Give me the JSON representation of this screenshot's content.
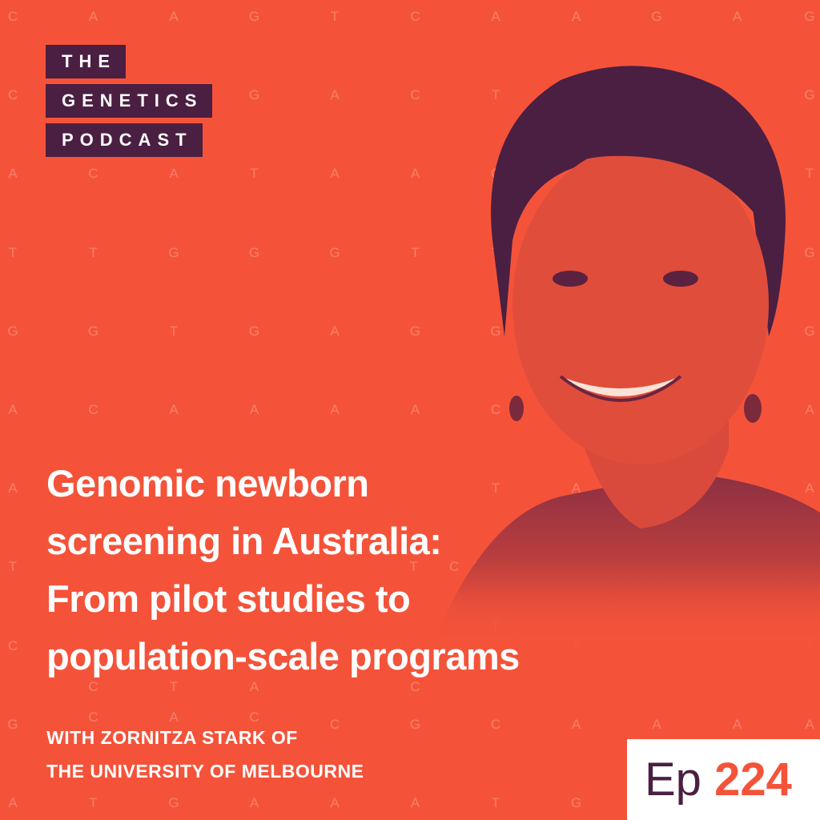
{
  "background_letters": [
    [
      "C",
      "A",
      "A",
      "G",
      "T",
      "C",
      "A",
      "A",
      "G",
      "A",
      "G"
    ],
    [
      "C",
      "",
      "",
      "G",
      "A",
      "C",
      "T",
      "",
      "",
      "",
      "G"
    ],
    [
      "A",
      "C",
      "A",
      "T",
      "A",
      "A",
      "C",
      "",
      "",
      "",
      "T"
    ],
    [
      "T",
      "T",
      "G",
      "G",
      "G",
      "T",
      "T",
      "",
      "",
      "",
      "G"
    ],
    [
      "G",
      "G",
      "T",
      "G",
      "A",
      "G",
      "G",
      "",
      "",
      "",
      "G"
    ],
    [
      "A",
      "C",
      "A",
      "A",
      "A",
      "A",
      "C",
      "",
      "",
      "",
      "A"
    ],
    [
      "A",
      "",
      "",
      "",
      "",
      "",
      "T",
      "A",
      "",
      "",
      "A"
    ],
    [
      "T",
      "T",
      "C",
      "T",
      "T",
      "T",
      "",
      "",
      "",
      "",
      ""
    ],
    [
      "C",
      "C",
      "T",
      "A",
      "",
      "C",
      "T",
      "A",
      "",
      "",
      "A"
    ],
    [
      "G",
      "C",
      "A",
      "C",
      "C",
      "G",
      "C",
      "A",
      "A",
      "A",
      "A"
    ],
    [
      "A",
      "T",
      "G",
      "A",
      "A",
      "A",
      "T",
      "G",
      "",
      "",
      ""
    ]
  ],
  "logo": {
    "line1": "THE",
    "line2": "GENETICS",
    "line3": "PODCAST"
  },
  "title_lines": [
    "Genomic newborn",
    "screening in Australia:",
    "From pilot studies to",
    "population-scale programs"
  ],
  "guest_lines": [
    "WITH ZORNITZA STARK OF",
    "THE UNIVERSITY OF MELBOURNE"
  ],
  "episode": {
    "label": "Ep",
    "number": "224"
  },
  "colors": {
    "background": "#f4533a",
    "brand_dark": "#4b1f41",
    "letters": "#f98a72",
    "badge": "#ffffff"
  }
}
